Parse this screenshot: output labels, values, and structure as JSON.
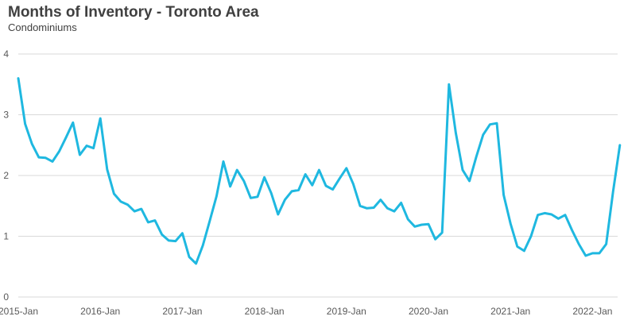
{
  "chart_data": {
    "type": "line",
    "title": "Months of Inventory - Toronto Area",
    "subtitle": "Condominiums",
    "xlabel": "",
    "ylabel": "",
    "ylim": [
      0,
      4
    ],
    "y_ticks": [
      "0",
      "1",
      "2",
      "3",
      "4"
    ],
    "x_ticks": [
      "2015-Jan",
      "2016-Jan",
      "2017-Jan",
      "2018-Jan",
      "2019-Jan",
      "2020-Jan",
      "2021-Jan",
      "2022-Jan"
    ],
    "grid": "horizontal",
    "legend": "none",
    "line_color": "#1fb8e0",
    "grid_color": "#d9d9d9",
    "x_start": "2015-Jan",
    "x_frequency": "monthly",
    "series": [
      {
        "values": [
          3.6,
          2.85,
          2.52,
          2.3,
          2.29,
          2.23,
          2.4,
          2.63,
          2.87,
          2.34,
          2.49,
          2.45,
          2.94,
          2.1,
          1.7,
          1.57,
          1.52,
          1.41,
          1.45,
          1.23,
          1.26,
          1.03,
          0.93,
          0.92,
          1.05,
          0.66,
          0.55,
          0.85,
          1.25,
          1.66,
          2.23,
          1.82,
          2.09,
          1.91,
          1.63,
          1.65,
          1.97,
          1.71,
          1.36,
          1.6,
          1.74,
          1.76,
          2.02,
          1.84,
          2.09,
          1.83,
          1.77,
          1.95,
          2.12,
          1.86,
          1.5,
          1.46,
          1.47,
          1.6,
          1.46,
          1.41,
          1.55,
          1.28,
          1.16,
          1.19,
          1.2,
          0.95,
          1.06,
          3.5,
          2.7,
          2.09,
          1.91,
          2.31,
          2.67,
          2.84,
          2.86,
          1.68,
          1.21,
          0.83,
          0.76,
          1.0,
          1.35,
          1.38,
          1.36,
          1.29,
          1.35,
          1.1,
          0.87,
          0.68,
          0.72,
          0.72,
          0.87,
          1.73,
          2.5
        ]
      }
    ]
  }
}
